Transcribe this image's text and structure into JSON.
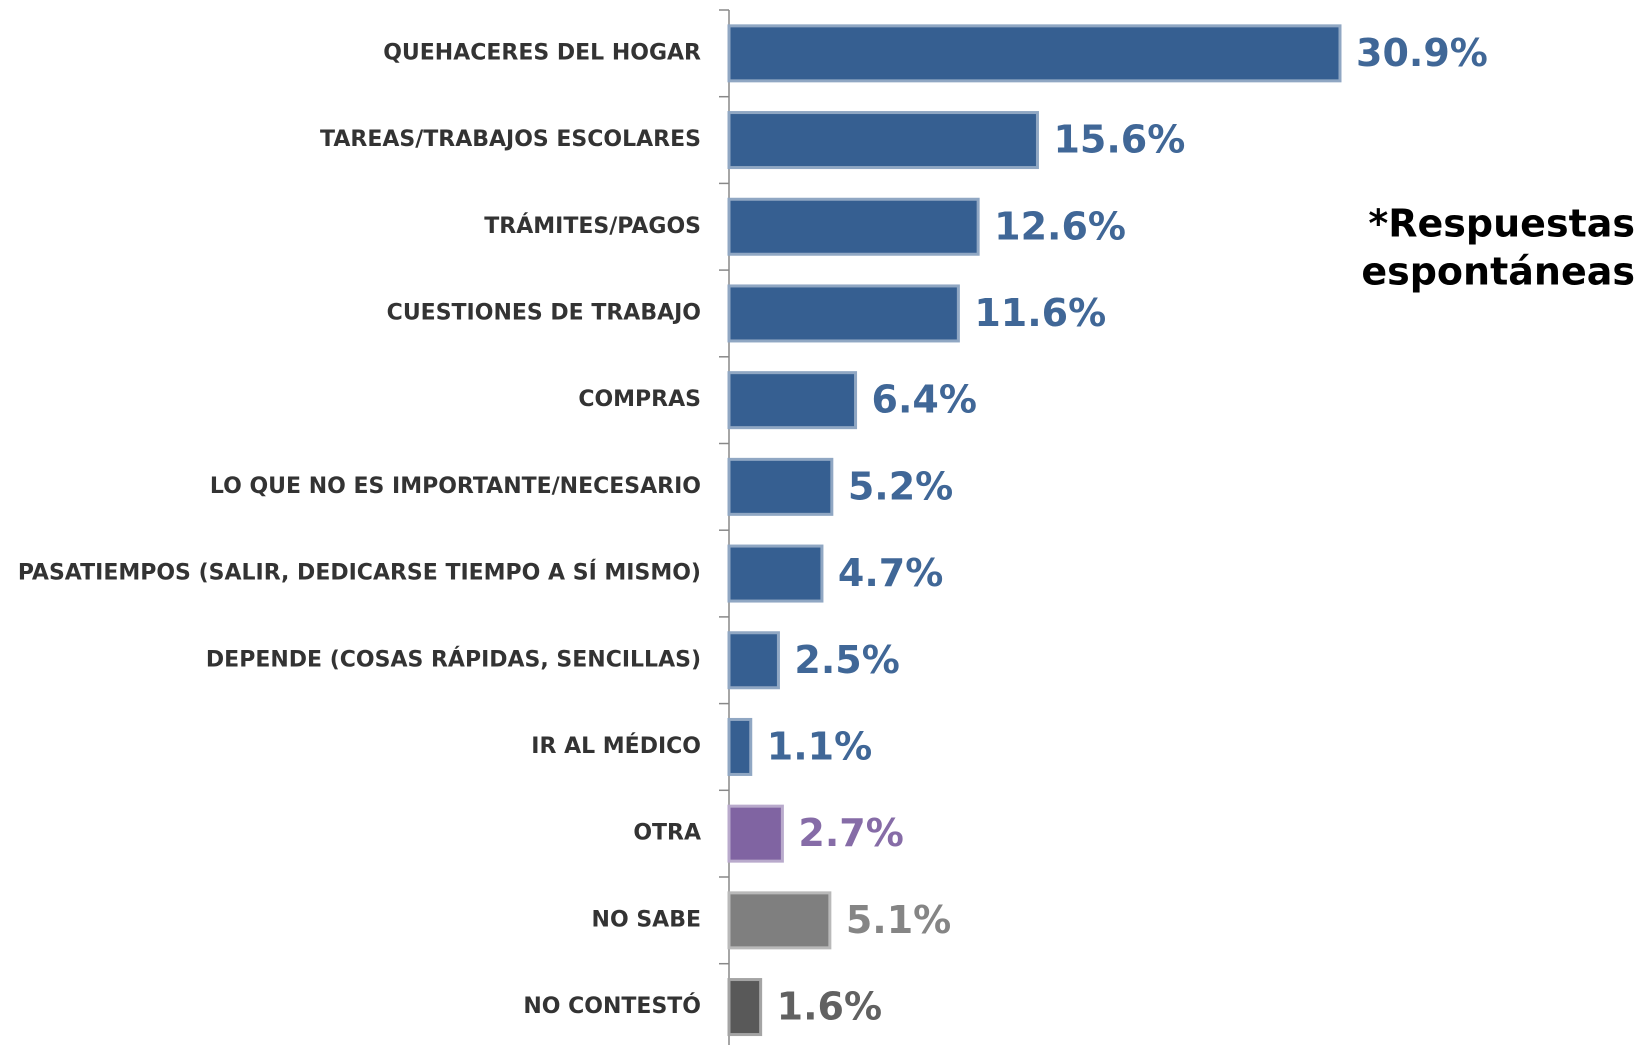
{
  "chart_data": {
    "type": "bar",
    "orientation": "horizontal",
    "categories": [
      "QUEHACERES DEL HOGAR",
      "TAREAS/TRABAJOS  ESCOLARES",
      "TRÁMITES/PAGOS",
      "CUESTIONES  DE TRABAJO",
      "COMPRAS",
      "LO QUE NO ES IMPORTANTE/NECESARIO",
      "PASATIEMPOS (SALIR, DEDICARSE TIEMPO A SÍ MISMO)",
      "DEPENDE (COSAS RÁPIDAS, SENCILLAS)",
      "IR AL MÉDICO",
      "OTRA",
      "NO SABE",
      "NO CONTESTÓ"
    ],
    "values": [
      30.9,
      15.6,
      12.6,
      11.6,
      6.4,
      5.2,
      4.7,
      2.5,
      1.1,
      2.7,
      5.1,
      1.6
    ],
    "value_labels": [
      "30.9%",
      "15.6%",
      "12.6%",
      "11.6%",
      "6.4%",
      "5.2%",
      "4.7%",
      "2.5%",
      "1.1%",
      "2.7%",
      "5.1%",
      "1.6%"
    ],
    "colors": [
      "#365f91",
      "#365f91",
      "#365f91",
      "#365f91",
      "#365f91",
      "#365f91",
      "#365f91",
      "#365f91",
      "#365f91",
      "#8064a2",
      "#7f7f7f",
      "#595959"
    ],
    "annotation": [
      "*Respuestas",
      "espontáneas"
    ]
  }
}
